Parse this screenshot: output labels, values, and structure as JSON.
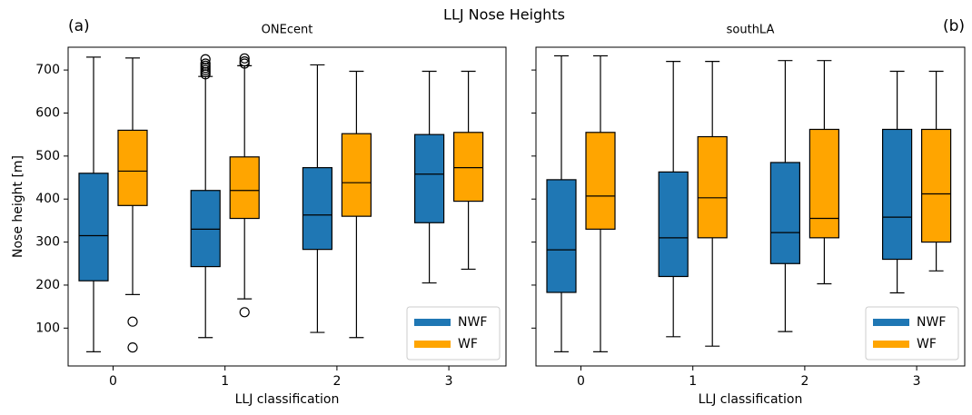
{
  "title": "LLJ Nose Heights",
  "chart_data": [
    {
      "type": "box",
      "label": "(a)",
      "title": "ONEcent",
      "xlabel": "LLJ classification",
      "ylabel": "Nose height [m]",
      "categories": [
        "0",
        "1",
        "2",
        "3"
      ],
      "ylim": [
        12,
        753
      ],
      "yticks": [
        100,
        200,
        300,
        400,
        500,
        600,
        700
      ],
      "ytick_labels": true,
      "legend": "lower right",
      "series": [
        {
          "name": "NWF",
          "color": "#1f77b4",
          "values": [
            {
              "min": 45,
              "q1": 210,
              "median": 315,
              "q3": 460,
              "max": 730
            },
            {
              "min": 78,
              "q1": 243,
              "median": 330,
              "q3": 420,
              "max": 685
            },
            {
              "min": 90,
              "q1": 283,
              "median": 363,
              "q3": 473,
              "max": 712
            },
            {
              "min": 205,
              "q1": 345,
              "median": 458,
              "q3": 550,
              "max": 697
            }
          ],
          "fliers": [
            [],
            [
              690,
              695,
              700,
              705,
              710,
              715,
              725
            ],
            [],
            []
          ]
        },
        {
          "name": "WF",
          "color": "#ffa500",
          "values": [
            {
              "min": 178,
              "q1": 385,
              "median": 465,
              "q3": 560,
              "max": 728
            },
            {
              "min": 168,
              "q1": 355,
              "median": 420,
              "q3": 498,
              "max": 710
            },
            {
              "min": 78,
              "q1": 360,
              "median": 438,
              "q3": 552,
              "max": 697
            },
            {
              "min": 237,
              "q1": 395,
              "median": 473,
              "q3": 555,
              "max": 697
            }
          ],
          "fliers": [
            [
              115,
              55
            ],
            [
              137,
              715,
              720,
              727
            ],
            [],
            []
          ]
        }
      ]
    },
    {
      "type": "box",
      "label": "(b)",
      "title": "southLA",
      "xlabel": "LLJ classification",
      "categories": [
        "0",
        "1",
        "2",
        "3"
      ],
      "ylim": [
        12,
        753
      ],
      "yticks": [
        100,
        200,
        300,
        400,
        500,
        600,
        700
      ],
      "ytick_labels": false,
      "legend": "lower right",
      "series": [
        {
          "name": "NWF",
          "color": "#1f77b4",
          "values": [
            {
              "min": 45,
              "q1": 183,
              "median": 282,
              "q3": 445,
              "max": 733
            },
            {
              "min": 80,
              "q1": 220,
              "median": 310,
              "q3": 463,
              "max": 720
            },
            {
              "min": 92,
              "q1": 250,
              "median": 322,
              "q3": 485,
              "max": 722
            },
            {
              "min": 182,
              "q1": 260,
              "median": 358,
              "q3": 562,
              "max": 697
            }
          ],
          "fliers": [
            [],
            [],
            [],
            []
          ]
        },
        {
          "name": "WF",
          "color": "#ffa500",
          "values": [
            {
              "min": 45,
              "q1": 330,
              "median": 407,
              "q3": 555,
              "max": 733
            },
            {
              "min": 58,
              "q1": 310,
              "median": 403,
              "q3": 545,
              "max": 720
            },
            {
              "min": 203,
              "q1": 310,
              "median": 355,
              "q3": 562,
              "max": 722
            },
            {
              "min": 233,
              "q1": 300,
              "median": 412,
              "q3": 562,
              "max": 697
            }
          ],
          "fliers": [
            [],
            [],
            [],
            []
          ]
        }
      ]
    }
  ]
}
